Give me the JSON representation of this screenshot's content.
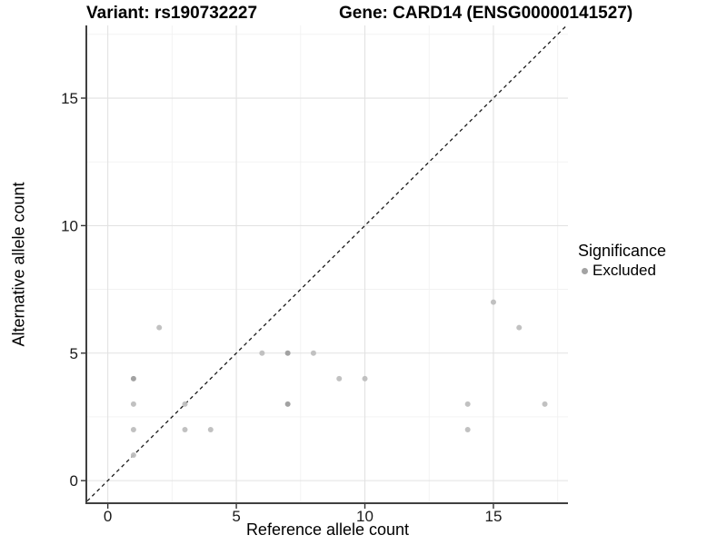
{
  "header": {
    "variant_title": "Variant: rs190732227",
    "gene_title": "Gene: CARD14 (ENSG00000141527)"
  },
  "legend": {
    "title": "Significance",
    "items": [
      {
        "label": "Excluded",
        "color": "#a3a3a3"
      }
    ]
  },
  "colors": {
    "background": "#ffffff",
    "point_light": "#bebebe",
    "point_dark": "#9d9d9d",
    "grid_major": "#e2e2e2",
    "grid_minor": "#f1f1f1",
    "axis_line": "#404040",
    "tick_mark": "#333333",
    "tick_label": "#1a1a1a",
    "reference_line": "#1a1a1a"
  },
  "chart_data": {
    "type": "scatter",
    "title_left": "Variant: rs190732227",
    "title_right": "Gene: CARD14 (ENSG00000141527)",
    "xlabel": "Reference allele count",
    "ylabel": "Alternative allele count",
    "xlim": [
      -0.8,
      17.9
    ],
    "ylim": [
      -0.85,
      17.85
    ],
    "x_major_ticks": [
      0,
      5,
      10,
      15
    ],
    "y_major_ticks": [
      0,
      5,
      10,
      15
    ],
    "x_minor_gridlines": [
      2.5,
      7.5,
      12.5,
      17.5
    ],
    "y_minor_gridlines": [
      2.5,
      7.5,
      12.5,
      17.5
    ],
    "grid": true,
    "legend_position": "right",
    "reference_line": {
      "type": "identity",
      "equation": "y = x",
      "style": "dashed"
    },
    "series": [
      {
        "name": "Excluded",
        "points": [
          {
            "x": 1,
            "y": 1,
            "shade": "light"
          },
          {
            "x": 1,
            "y": 2,
            "shade": "light"
          },
          {
            "x": 1,
            "y": 3,
            "shade": "light"
          },
          {
            "x": 1,
            "y": 4,
            "shade": "dark"
          },
          {
            "x": 2,
            "y": 6,
            "shade": "light"
          },
          {
            "x": 3,
            "y": 2,
            "shade": "light"
          },
          {
            "x": 3,
            "y": 3,
            "shade": "light"
          },
          {
            "x": 4,
            "y": 2,
            "shade": "light"
          },
          {
            "x": 6,
            "y": 5,
            "shade": "light"
          },
          {
            "x": 7,
            "y": 3,
            "shade": "dark"
          },
          {
            "x": 7,
            "y": 5,
            "shade": "dark"
          },
          {
            "x": 8,
            "y": 5,
            "shade": "light"
          },
          {
            "x": 9,
            "y": 4,
            "shade": "light"
          },
          {
            "x": 10,
            "y": 4,
            "shade": "light"
          },
          {
            "x": 14,
            "y": 2,
            "shade": "light"
          },
          {
            "x": 14,
            "y": 3,
            "shade": "light"
          },
          {
            "x": 15,
            "y": 7,
            "shade": "light"
          },
          {
            "x": 16,
            "y": 6,
            "shade": "light"
          },
          {
            "x": 17,
            "y": 3,
            "shade": "light"
          }
        ]
      }
    ]
  }
}
